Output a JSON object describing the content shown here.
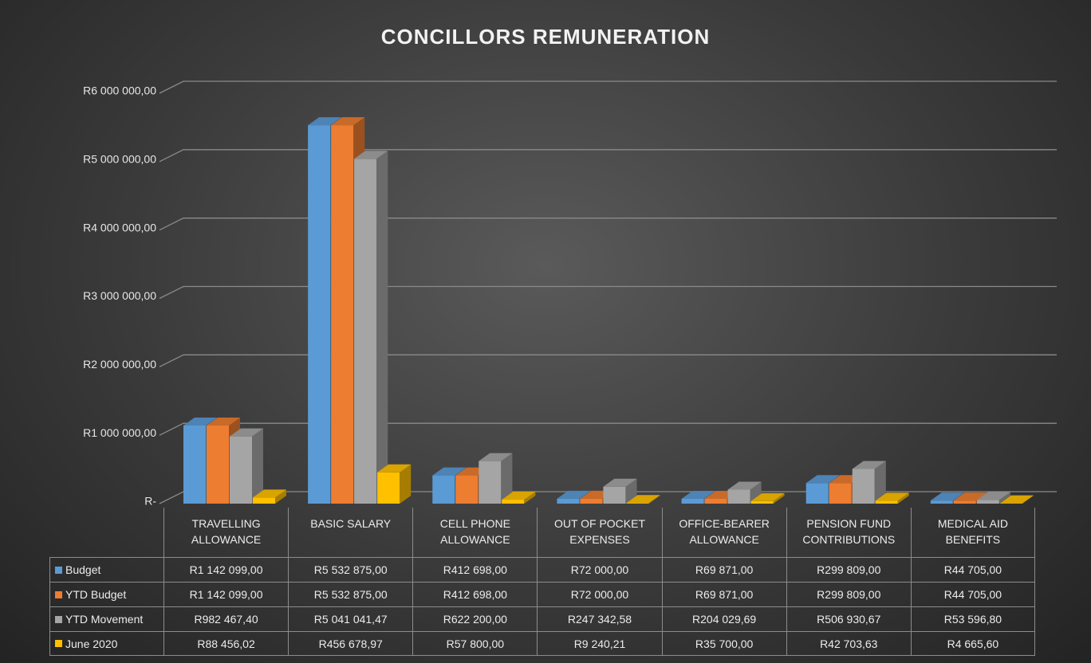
{
  "chart_data": {
    "type": "bar3d",
    "title": "CONCILLORS REMUNERATION",
    "categories": [
      "TRAVELLING ALLOWANCE",
      "BASIC SALARY",
      "CELL PHONE ALLOWANCE",
      "OUT OF POCKET EXPENSES",
      "OFFICE-BEARER ALLOWANCE",
      "PENSION FUND CONTRIBUTIONS",
      "MEDICAL AID BENEFITS"
    ],
    "series": [
      {
        "name": "Budget",
        "color": "#5b9bd5",
        "values": [
          1142099,
          5532875,
          412698,
          72000,
          69871,
          299809,
          44705
        ],
        "value_labels": [
          "R1 142 099,00",
          "R5 532 875,00",
          "R412 698,00",
          "R72 000,00",
          "R69 871,00",
          "R299 809,00",
          "R44 705,00"
        ]
      },
      {
        "name": "YTD Budget",
        "color": "#ed7d31",
        "values": [
          1142099,
          5532875,
          412698,
          72000,
          69871,
          299809,
          44705
        ],
        "value_labels": [
          "R1 142 099,00",
          "R5 532 875,00",
          "R412 698,00",
          "R72 000,00",
          "R69 871,00",
          "R299 809,00",
          "R44 705,00"
        ]
      },
      {
        "name": "YTD Movement",
        "color": "#a5a5a5",
        "values": [
          982467.4,
          5041041.47,
          622200,
          247342.58,
          204029.69,
          506930.67,
          53596.8
        ],
        "value_labels": [
          "R982 467,40",
          "R5 041 041,47",
          "R622 200,00",
          "R247 342,58",
          "R204 029,69",
          "R506 930,67",
          "R53 596,80"
        ]
      },
      {
        "name": "June 2020",
        "color": "#ffc000",
        "values": [
          88456.02,
          456678.97,
          57800,
          9240.21,
          35700,
          42703.63,
          4665.6
        ],
        "value_labels": [
          "R88 456,02",
          "R456 678,97",
          "R57 800,00",
          "R9 240,21",
          "R35 700,00",
          "R42 703,63",
          "R4 665,60"
        ]
      }
    ],
    "ylim": [
      0,
      6000000
    ],
    "yticks": [
      {
        "value": 0,
        "label": "R-"
      },
      {
        "value": 1000000,
        "label": "R1 000 000,00"
      },
      {
        "value": 2000000,
        "label": "R2 000 000,00"
      },
      {
        "value": 3000000,
        "label": "R3 000 000,00"
      },
      {
        "value": 4000000,
        "label": "R4 000 000,00"
      },
      {
        "value": 5000000,
        "label": "R5 000 000,00"
      },
      {
        "value": 6000000,
        "label": "R6 000 000,00"
      }
    ],
    "grid": true
  }
}
